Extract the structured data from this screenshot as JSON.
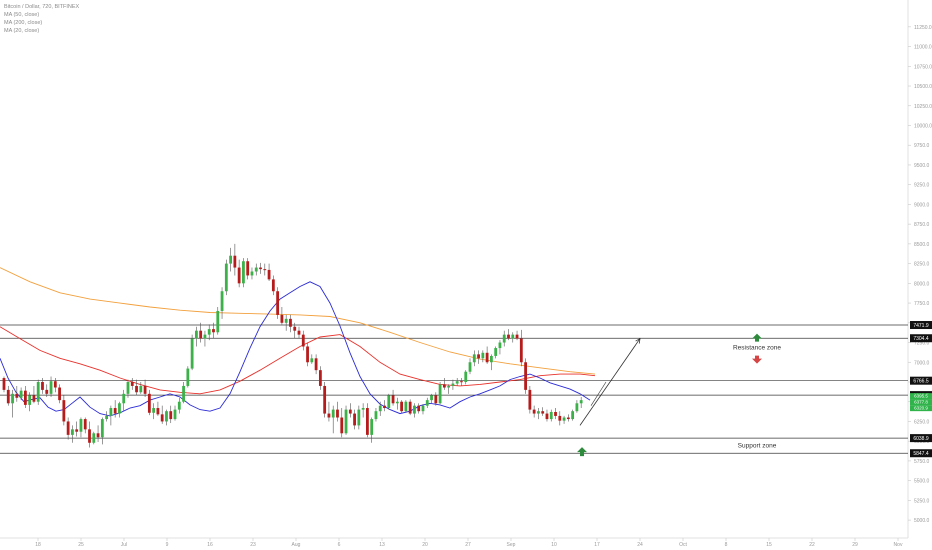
{
  "legend": {
    "symbol": "Bitcoin / Dollar, 720, BITFINEX",
    "ma50": "MA (50, close)",
    "ma200": "MA (200, close)",
    "ma20": "MA (20, close)"
  },
  "chart_data": {
    "type": "candlestick",
    "symbol": "Bitcoin / Dollar",
    "interval": "720",
    "exchange": "BITFINEX",
    "ylim": [
      4900,
      11400
    ],
    "y_axis_ticks": [
      5000,
      5250,
      5500,
      5750,
      6000,
      6250,
      6500,
      6750,
      7000,
      7250,
      7500,
      7750,
      8000,
      8250,
      8500,
      8750,
      9000,
      9250,
      9500,
      9750,
      10000,
      10250,
      10500,
      10750,
      11000,
      11250
    ],
    "x_axis_labels": [
      "18",
      "25",
      "Jul",
      "9",
      "16",
      "23",
      "Aug",
      "6",
      "13",
      "20",
      "27",
      "Sep",
      "10",
      "17",
      "24",
      "Oct",
      "8",
      "15",
      "22",
      "29",
      "Nov"
    ],
    "price_levels": [
      {
        "label": "7471.9",
        "value": 7471.9
      },
      {
        "label": "7304.4",
        "value": 7304.4
      },
      {
        "label": "6766.5",
        "value": 6766.5
      },
      {
        "label": "6583.7",
        "value": 6583.7
      },
      {
        "label": "6038.9",
        "value": 6038.9
      },
      {
        "label": "5847.4",
        "value": 5847.4
      }
    ],
    "current_price_tags": [
      "6395.5",
      "6377.8",
      "6320.9"
    ],
    "zones": [
      {
        "label": "Resistance zone",
        "from": 7304.4,
        "to": 7471.9
      },
      {
        "label": "Support zone",
        "from": 5847.4,
        "to": 6038.9
      }
    ],
    "series_colors": {
      "ma20": "#2b2bd6",
      "ma50": "#e8312b",
      "ma200": "#f2a03d",
      "up": "#26a69a",
      "candle_up": "#3cb14a",
      "candle_down": "#b71c1c"
    },
    "candles_ohlc": [
      [
        6800,
        6820,
        6620,
        6650
      ],
      [
        6650,
        6700,
        6450,
        6480
      ],
      [
        6480,
        6650,
        6300,
        6600
      ],
      [
        6600,
        6700,
        6500,
        6550
      ],
      [
        6550,
        6680,
        6520,
        6640
      ],
      [
        6640,
        6700,
        6420,
        6460
      ],
      [
        6460,
        6620,
        6380,
        6580
      ],
      [
        6580,
        6700,
        6480,
        6500
      ],
      [
        6500,
        6780,
        6460,
        6750
      ],
      [
        6750,
        6800,
        6600,
        6650
      ],
      [
        6650,
        6720,
        6560,
        6600
      ],
      [
        6600,
        6820,
        6560,
        6760
      ],
      [
        6760,
        6800,
        6620,
        6680
      ],
      [
        6680,
        6720,
        6480,
        6520
      ],
      [
        6520,
        6580,
        6200,
        6250
      ],
      [
        6250,
        6300,
        6020,
        6080
      ],
      [
        6080,
        6200,
        5980,
        6150
      ],
      [
        6150,
        6250,
        6060,
        6120
      ],
      [
        6120,
        6300,
        6050,
        6280
      ],
      [
        6280,
        6300,
        6100,
        6150
      ],
      [
        6150,
        6250,
        5920,
        5980
      ],
      [
        5980,
        6120,
        5960,
        6100
      ],
      [
        6100,
        6200,
        5990,
        6050
      ],
      [
        6050,
        6300,
        5960,
        6280
      ],
      [
        6280,
        6380,
        6250,
        6320
      ],
      [
        6320,
        6450,
        6200,
        6420
      ],
      [
        6420,
        6520,
        6300,
        6350
      ],
      [
        6350,
        6500,
        6300,
        6480
      ],
      [
        6480,
        6650,
        6380,
        6600
      ],
      [
        6600,
        6780,
        6550,
        6750
      ],
      [
        6750,
        6800,
        6650,
        6700
      ],
      [
        6700,
        6780,
        6580,
        6620
      ],
      [
        6620,
        6750,
        6600,
        6700
      ],
      [
        6700,
        6780,
        6560,
        6600
      ],
      [
        6600,
        6650,
        6330,
        6360
      ],
      [
        6360,
        6480,
        6280,
        6420
      ],
      [
        6420,
        6500,
        6320,
        6340
      ],
      [
        6340,
        6450,
        6220,
        6250
      ],
      [
        6250,
        6400,
        6200,
        6380
      ],
      [
        6380,
        6450,
        6230,
        6280
      ],
      [
        6280,
        6450,
        6260,
        6400
      ],
      [
        6400,
        6550,
        6350,
        6500
      ],
      [
        6500,
        6750,
        6480,
        6700
      ],
      [
        6700,
        6950,
        6680,
        6920
      ],
      [
        6920,
        7350,
        6900,
        7300
      ],
      [
        7300,
        7450,
        7200,
        7400
      ],
      [
        7400,
        7500,
        7250,
        7300
      ],
      [
        7300,
        7400,
        7200,
        7350
      ],
      [
        7350,
        7480,
        7280,
        7420
      ],
      [
        7420,
        7500,
        7300,
        7380
      ],
      [
        7380,
        7700,
        7350,
        7650
      ],
      [
        7650,
        7950,
        7550,
        7900
      ],
      [
        7900,
        8300,
        7850,
        8250
      ],
      [
        8250,
        8450,
        8150,
        8350
      ],
      [
        8350,
        8500,
        8100,
        8200
      ],
      [
        8200,
        8300,
        7950,
        8000
      ],
      [
        8000,
        8320,
        7950,
        8280
      ],
      [
        8280,
        8320,
        8050,
        8100
      ],
      [
        8100,
        8200,
        8050,
        8150
      ],
      [
        8150,
        8250,
        8100,
        8200
      ],
      [
        8200,
        8260,
        8120,
        8180
      ],
      [
        8180,
        8250,
        8100,
        8170
      ],
      [
        8170,
        8250,
        8030,
        8050
      ],
      [
        8050,
        8100,
        7850,
        7900
      ],
      [
        7900,
        7950,
        7550,
        7600
      ],
      [
        7600,
        7700,
        7480,
        7500
      ],
      [
        7500,
        7600,
        7400,
        7550
      ],
      [
        7550,
        7600,
        7380,
        7450
      ],
      [
        7450,
        7500,
        7300,
        7400
      ],
      [
        7400,
        7450,
        7300,
        7350
      ],
      [
        7350,
        7400,
        7150,
        7200
      ],
      [
        7200,
        7250,
        6950,
        7000
      ],
      [
        7000,
        7100,
        6980,
        7050
      ],
      [
        7050,
        7100,
        6850,
        6900
      ],
      [
        6900,
        6950,
        6650,
        6700
      ],
      [
        6700,
        6750,
        6300,
        6350
      ],
      [
        6350,
        6500,
        6250,
        6300
      ],
      [
        6300,
        6450,
        6100,
        6400
      ],
      [
        6400,
        6500,
        6250,
        6300
      ],
      [
        6300,
        6420,
        6050,
        6100
      ],
      [
        6100,
        6450,
        6080,
        6400
      ],
      [
        6400,
        6480,
        6300,
        6350
      ],
      [
        6350,
        6400,
        6150,
        6200
      ],
      [
        6200,
        6450,
        6150,
        6400
      ],
      [
        6400,
        6480,
        6300,
        6420
      ],
      [
        6420,
        6480,
        6050,
        6080
      ],
      [
        6080,
        6300,
        5980,
        6280
      ],
      [
        6280,
        6420,
        6250,
        6380
      ],
      [
        6380,
        6500,
        6320,
        6450
      ],
      [
        6450,
        6520,
        6380,
        6420
      ],
      [
        6420,
        6600,
        6400,
        6580
      ],
      [
        6580,
        6650,
        6450,
        6480
      ],
      [
        6480,
        6550,
        6400,
        6500
      ],
      [
        6500,
        6520,
        6350,
        6380
      ],
      [
        6380,
        6520,
        6360,
        6500
      ],
      [
        6500,
        6530,
        6330,
        6350
      ],
      [
        6350,
        6480,
        6300,
        6450
      ],
      [
        6450,
        6480,
        6350,
        6380
      ],
      [
        6380,
        6470,
        6340,
        6450
      ],
      [
        6450,
        6550,
        6420,
        6520
      ],
      [
        6520,
        6600,
        6480,
        6580
      ],
      [
        6580,
        6620,
        6450,
        6480
      ],
      [
        6480,
        6750,
        6470,
        6720
      ],
      [
        6720,
        6800,
        6650,
        6680
      ],
      [
        6680,
        6720,
        6600,
        6700
      ],
      [
        6700,
        6780,
        6650,
        6730
      ],
      [
        6730,
        6800,
        6700,
        6760
      ],
      [
        6760,
        6800,
        6700,
        6750
      ],
      [
        6750,
        6900,
        6720,
        6880
      ],
      [
        6880,
        7050,
        6850,
        7000
      ],
      [
        7000,
        7150,
        6950,
        7100
      ],
      [
        7100,
        7150,
        6980,
        7050
      ],
      [
        7050,
        7150,
        7000,
        7120
      ],
      [
        7120,
        7200,
        6980,
        7000
      ],
      [
        7000,
        7100,
        6900,
        7080
      ],
      [
        7080,
        7200,
        7050,
        7180
      ],
      [
        7180,
        7280,
        7100,
        7250
      ],
      [
        7250,
        7400,
        7200,
        7350
      ],
      [
        7350,
        7420,
        7280,
        7300
      ],
      [
        7300,
        7380,
        7250,
        7350
      ],
      [
        7350,
        7400,
        7280,
        7300
      ],
      [
        7300,
        7410,
        6950,
        7000
      ],
      [
        7000,
        7050,
        6600,
        6650
      ],
      [
        6650,
        6700,
        6350,
        6400
      ],
      [
        6400,
        6450,
        6300,
        6350
      ],
      [
        6350,
        6420,
        6280,
        6380
      ],
      [
        6380,
        6430,
        6320,
        6350
      ],
      [
        6350,
        6400,
        6250,
        6280
      ],
      [
        6280,
        6400,
        6250,
        6370
      ],
      [
        6370,
        6420,
        6280,
        6320
      ],
      [
        6320,
        6380,
        6200,
        6260
      ],
      [
        6260,
        6320,
        6220,
        6300
      ],
      [
        6300,
        6340,
        6250,
        6280
      ],
      [
        6280,
        6400,
        6260,
        6380
      ],
      [
        6380,
        6520,
        6360,
        6480
      ],
      [
        6480,
        6560,
        6420,
        6520
      ]
    ],
    "ma20": [
      [
        0,
        7050
      ],
      [
        8,
        6800
      ],
      [
        16,
        6620
      ],
      [
        24,
        6500
      ],
      [
        32,
        6530
      ],
      [
        40,
        6550
      ],
      [
        48,
        6430
      ],
      [
        56,
        6380
      ],
      [
        64,
        6400
      ],
      [
        72,
        6480
      ],
      [
        80,
        6560
      ],
      [
        90,
        6430
      ],
      [
        100,
        6350
      ],
      [
        110,
        6320
      ],
      [
        120,
        6360
      ],
      [
        130,
        6420
      ],
      [
        140,
        6450
      ],
      [
        150,
        6520
      ],
      [
        160,
        6560
      ],
      [
        170,
        6600
      ],
      [
        180,
        6560
      ],
      [
        190,
        6460
      ],
      [
        200,
        6400
      ],
      [
        210,
        6380
      ],
      [
        220,
        6420
      ],
      [
        230,
        6600
      ],
      [
        240,
        6880
      ],
      [
        250,
        7180
      ],
      [
        260,
        7450
      ],
      [
        270,
        7650
      ],
      [
        280,
        7800
      ],
      [
        290,
        7880
      ],
      [
        300,
        7960
      ],
      [
        310,
        8020
      ],
      [
        320,
        7960
      ],
      [
        330,
        7750
      ],
      [
        340,
        7460
      ],
      [
        350,
        7120
      ],
      [
        360,
        6820
      ],
      [
        370,
        6600
      ],
      [
        380,
        6470
      ],
      [
        390,
        6400
      ],
      [
        400,
        6350
      ],
      [
        410,
        6380
      ],
      [
        420,
        6450
      ],
      [
        430,
        6480
      ],
      [
        440,
        6460
      ],
      [
        450,
        6420
      ],
      [
        460,
        6500
      ],
      [
        470,
        6560
      ],
      [
        480,
        6600
      ],
      [
        490,
        6650
      ],
      [
        500,
        6700
      ],
      [
        510,
        6780
      ],
      [
        520,
        6820
      ],
      [
        530,
        6850
      ],
      [
        540,
        6800
      ],
      [
        550,
        6740
      ],
      [
        560,
        6700
      ],
      [
        570,
        6660
      ],
      [
        580,
        6600
      ],
      [
        590,
        6520
      ]
    ],
    "ma50": [
      [
        0,
        7450
      ],
      [
        20,
        7300
      ],
      [
        40,
        7150
      ],
      [
        60,
        7050
      ],
      [
        80,
        6980
      ],
      [
        100,
        6900
      ],
      [
        120,
        6800
      ],
      [
        140,
        6720
      ],
      [
        160,
        6650
      ],
      [
        180,
        6620
      ],
      [
        200,
        6600
      ],
      [
        220,
        6650
      ],
      [
        240,
        6760
      ],
      [
        260,
        6900
      ],
      [
        280,
        7050
      ],
      [
        300,
        7200
      ],
      [
        320,
        7320
      ],
      [
        340,
        7350
      ],
      [
        360,
        7200
      ],
      [
        380,
        7000
      ],
      [
        400,
        6850
      ],
      [
        420,
        6780
      ],
      [
        440,
        6720
      ],
      [
        460,
        6700
      ],
      [
        480,
        6720
      ],
      [
        500,
        6750
      ],
      [
        520,
        6780
      ],
      [
        540,
        6830
      ],
      [
        560,
        6850
      ],
      [
        580,
        6850
      ],
      [
        595,
        6830
      ]
    ],
    "ma200": [
      [
        0,
        8200
      ],
      [
        30,
        8020
      ],
      [
        60,
        7880
      ],
      [
        90,
        7800
      ],
      [
        120,
        7750
      ],
      [
        150,
        7700
      ],
      [
        180,
        7660
      ],
      [
        210,
        7630
      ],
      [
        240,
        7620
      ],
      [
        270,
        7610
      ],
      [
        300,
        7600
      ],
      [
        330,
        7580
      ],
      [
        360,
        7500
      ],
      [
        390,
        7380
      ],
      [
        420,
        7250
      ],
      [
        450,
        7130
      ],
      [
        480,
        7040
      ],
      [
        510,
        6980
      ],
      [
        540,
        6930
      ],
      [
        570,
        6880
      ],
      [
        595,
        6850
      ]
    ],
    "projection": {
      "from": [
        580,
        6200
      ],
      "to": [
        640,
        7300
      ]
    }
  }
}
